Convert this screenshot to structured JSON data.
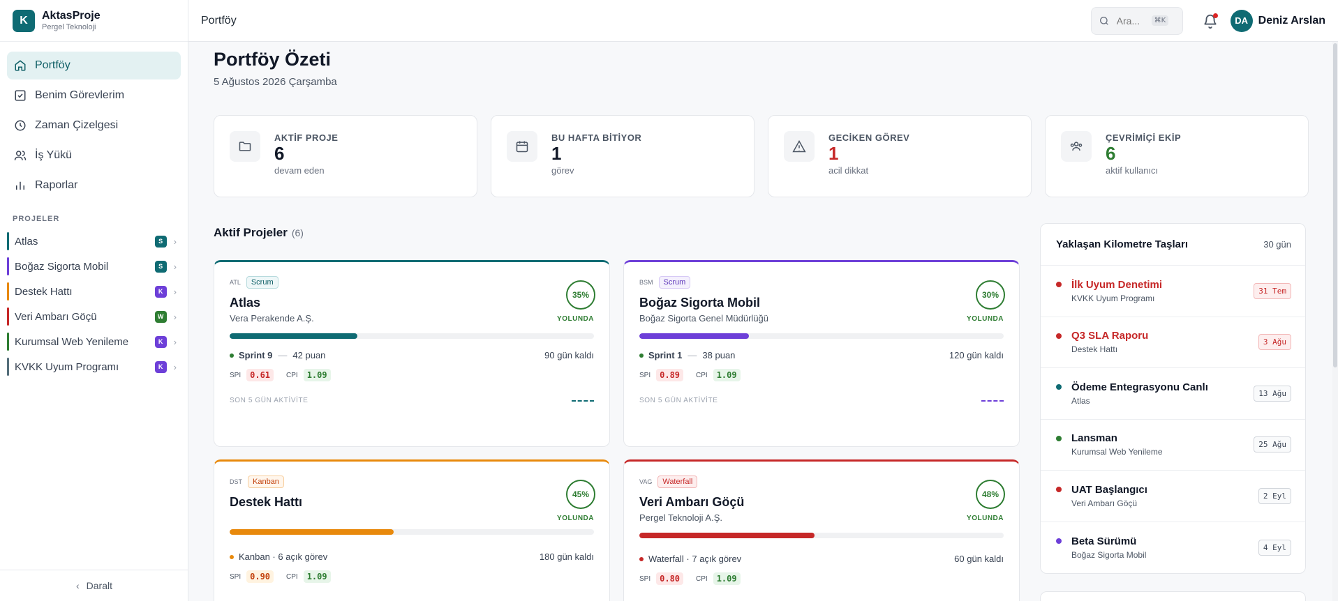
{
  "brand": {
    "logo": "K",
    "name": "AktasProje",
    "sub": "Pergel Teknoloji"
  },
  "nav": [
    {
      "label": "Portföy",
      "icon": "home-icon"
    },
    {
      "label": "Benim Görevlerim",
      "icon": "checkbox-icon"
    },
    {
      "label": "Zaman Çizelgesi",
      "icon": "clock-icon"
    },
    {
      "label": "İş Yükü",
      "icon": "users-icon"
    },
    {
      "label": "Raporlar",
      "icon": "bar-chart-icon"
    }
  ],
  "projects_label": "PROJELER",
  "projects": [
    {
      "name": "Atlas",
      "badge": "S",
      "color": "#0f6b73",
      "badge_color": "#0f6b73"
    },
    {
      "name": "Boğaz Sigorta Mobil",
      "badge": "S",
      "color": "#6d3fd8",
      "badge_color": "#0f6b73"
    },
    {
      "name": "Destek Hattı",
      "badge": "K",
      "color": "#e8890c",
      "badge_color": "#6d3fd8"
    },
    {
      "name": "Veri Ambarı Göçü",
      "badge": "W",
      "color": "#c62828",
      "badge_color": "#2e7d32"
    },
    {
      "name": "Kurumsal Web Yenileme",
      "badge": "K",
      "color": "#2e7d32",
      "badge_color": "#6d3fd8"
    },
    {
      "name": "KVKK Uyum Programı",
      "badge": "K",
      "color": "#546e7a",
      "badge_color": "#6d3fd8"
    }
  ],
  "collapse_label": "Daralt",
  "header": {
    "title": "Portföy",
    "search_placeholder": "Ara...",
    "shortcut": "⌘K",
    "avatar": "DA",
    "user": "Deniz Arslan"
  },
  "page": {
    "title": "Portföy Özeti",
    "date": "5 Ağustos 2026 Çarşamba"
  },
  "stats": [
    {
      "label": "AKTİF PROJE",
      "value": "6",
      "sub": "devam eden",
      "icon": "folder-icon",
      "tone": ""
    },
    {
      "label": "BU HAFTA BİTİYOR",
      "value": "1",
      "sub": "görev",
      "icon": "calendar-icon",
      "tone": ""
    },
    {
      "label": "GECİKEN GÖREV",
      "value": "1",
      "sub": "acil dikkat",
      "icon": "warning-icon",
      "tone": "red"
    },
    {
      "label": "ÇEVRİMİÇİ EKİP",
      "value": "6",
      "sub": "aktif kullanıcı",
      "icon": "team-icon",
      "tone": "green"
    }
  ],
  "active_projects": {
    "title": "Aktif Projeler",
    "count": "(6)"
  },
  "cards": [
    {
      "code": "ATL",
      "method": "Scrum",
      "name": "Atlas",
      "client": "Vera Perakende A.Ş.",
      "percent": "35%",
      "progress": 0.35,
      "status": "YOLUNDA",
      "sprint": "Sprint 9",
      "points": "42 puan",
      "days": "90 gün kaldı",
      "spi": "0.61",
      "cpi": "1.09",
      "activity": "SON 5 GÜN AKTİVİTE",
      "color": "#0f6b73"
    },
    {
      "code": "BSM",
      "method": "Scrum",
      "name": "Boğaz Sigorta Mobil",
      "client": "Boğaz Sigorta Genel Müdürlüğü",
      "percent": "30%",
      "progress": 0.3,
      "status": "YOLUNDA",
      "sprint": "Sprint 1",
      "points": "38 puan",
      "days": "120 gün kaldı",
      "spi": "0.89",
      "cpi": "1.09",
      "activity": "SON 5 GÜN AKTİVİTE",
      "color": "#6d3fd8"
    },
    {
      "code": "DST",
      "method": "Kanban",
      "name": "Destek Hattı",
      "client": "",
      "percent": "45%",
      "progress": 0.45,
      "status": "YOLUNDA",
      "line": "Kanban · 6 açık görev",
      "days": "180 gün kaldı",
      "spi": "0.90",
      "cpi": "1.09",
      "color": "#e8890c"
    },
    {
      "code": "VAG",
      "method": "Waterfall",
      "name": "Veri Ambarı Göçü",
      "client": "Pergel Teknoloji A.Ş.",
      "percent": "48%",
      "progress": 0.48,
      "status": "YOLUNDA",
      "line": "Waterfall · 7 açık görev",
      "days": "60 gün kaldı",
      "spi": "0.80",
      "cpi": "1.09",
      "color": "#c62828"
    }
  ],
  "labels": {
    "spi": "SPI",
    "cpi": "CPI",
    "sep": "—"
  },
  "milestones": {
    "title": "Yaklaşan Kilometre Taşları",
    "range": "30 gün",
    "items": [
      {
        "name": "İlk Uyum Denetimi",
        "project": "KVKK Uyum Programı",
        "date": "31 Tem",
        "overdue": true,
        "dot": "#c62828"
      },
      {
        "name": "Q3 SLA Raporu",
        "project": "Destek Hattı",
        "date": "3 Ağu",
        "overdue": true,
        "dot": "#c62828"
      },
      {
        "name": "Ödeme Entegrasyonu Canlı",
        "project": "Atlas",
        "date": "13 Ağu",
        "overdue": false,
        "dot": "#0f6b73"
      },
      {
        "name": "Lansman",
        "project": "Kurumsal Web Yenileme",
        "date": "25 Ağu",
        "overdue": false,
        "dot": "#2e7d32"
      },
      {
        "name": "UAT Başlangıcı",
        "project": "Veri Ambarı Göçü",
        "date": "2 Eyl",
        "overdue": false,
        "dot": "#c62828"
      },
      {
        "name": "Beta Sürümü",
        "project": "Boğaz Sigorta Mobil",
        "date": "4 Eyl",
        "overdue": false,
        "dot": "#6d3fd8"
      }
    ]
  }
}
